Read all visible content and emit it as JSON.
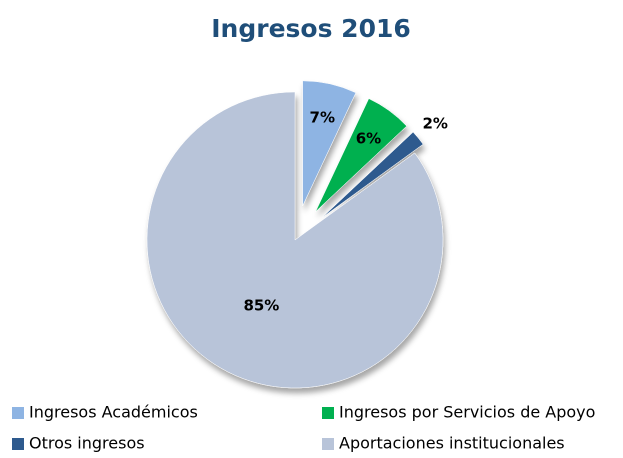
{
  "chart_data": {
    "type": "pie",
    "title": "Ingresos 2016",
    "categories": [
      "Ingresos Académicos",
      "Ingresos por Servicios de Apoyo",
      "Otros ingresos",
      "Aportaciones institucionales"
    ],
    "values": [
      7,
      6,
      2,
      85
    ],
    "value_labels": [
      "7%",
      "6%",
      "2%",
      "85%"
    ],
    "colors": [
      "#8eb4e3",
      "#00b050",
      "#2e5a8e",
      "#b8c4d9"
    ],
    "legend": "bottom"
  }
}
